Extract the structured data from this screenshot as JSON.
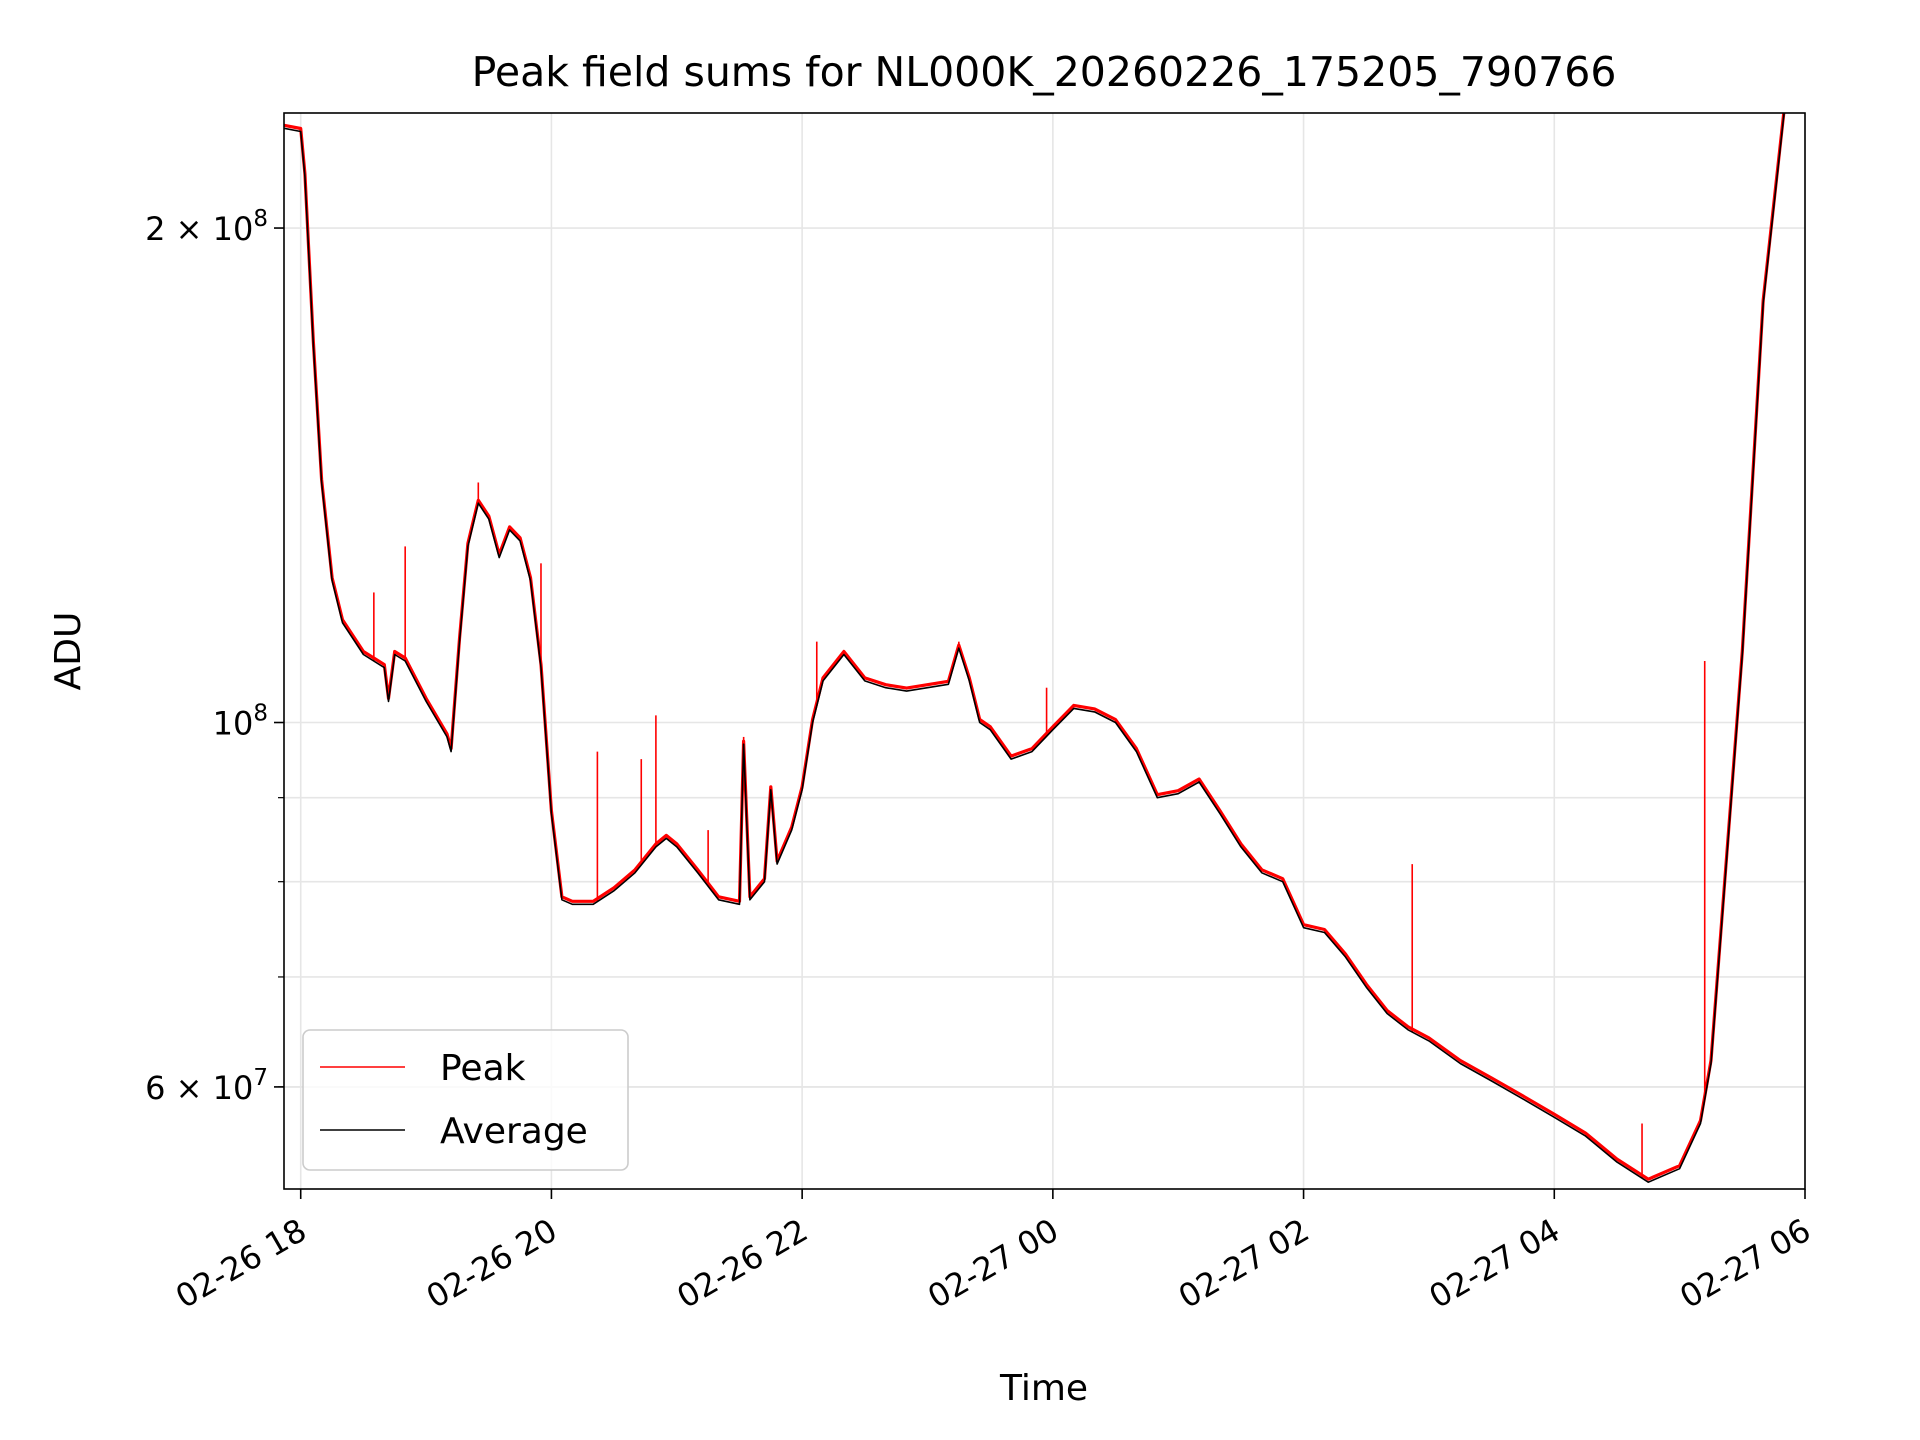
{
  "chart_data": {
    "type": "line",
    "title": "Peak field sums for NL000K_20260226_175205_790766",
    "xlabel": "Time",
    "ylabel": "ADU",
    "x_axis": {
      "type": "datetime",
      "range": [
        "2026-02-26 17:52",
        "2026-02-27 06:00"
      ],
      "tick_values": [
        "2026-02-26 18:00",
        "2026-02-26 20:00",
        "2026-02-26 22:00",
        "2026-02-27 00:00",
        "2026-02-27 02:00",
        "2026-02-27 04:00",
        "2026-02-27 06:00"
      ],
      "tick_labels": [
        "02-26 18",
        "02-26 20",
        "02-26 22",
        "02-27 00",
        "02-27 02",
        "02-27 04",
        "02-27 06"
      ],
      "tick_label_rotation": "30 degrees"
    },
    "y_axis": {
      "scale": "log",
      "range": [
        52000000,
        235000000
      ],
      "major_ticks": [
        {
          "value": 60000000,
          "label_mantissa": "6",
          "label_times": "×",
          "label_base": "10",
          "label_exp": "7"
        },
        {
          "value": 100000000,
          "label_mantissa": "",
          "label_times": "",
          "label_base": "10",
          "label_exp": "8"
        },
        {
          "value": 200000000,
          "label_mantissa": "2",
          "label_times": "×",
          "label_base": "10",
          "label_exp": "8"
        }
      ],
      "minor_ticks": [
        60000000,
        70000000,
        80000000,
        90000000
      ]
    },
    "grid": true,
    "legend": {
      "placement": "lower-left",
      "entries": [
        {
          "name": "Peak",
          "color": "#ff0000"
        },
        {
          "name": "Average",
          "color": "#000000"
        }
      ]
    },
    "colors": {
      "peak": "#ff0000",
      "average": "#000000",
      "grid": "#e6e6e6"
    },
    "series": [
      {
        "name": "Average",
        "points": [
          [
            "2026-02-26 17:52",
            230000000
          ],
          [
            "2026-02-26 18:00",
            229000000
          ],
          [
            "2026-02-26 18:02",
            215000000
          ],
          [
            "2026-02-26 18:06",
            170000000
          ],
          [
            "2026-02-26 18:10",
            140000000
          ],
          [
            "2026-02-26 18:15",
            122000000
          ],
          [
            "2026-02-26 18:20",
            115000000
          ],
          [
            "2026-02-26 18:30",
            110000000
          ],
          [
            "2026-02-26 18:40",
            108000000
          ],
          [
            "2026-02-26 18:42",
            103000000
          ],
          [
            "2026-02-26 18:45",
            110000000
          ],
          [
            "2026-02-26 18:50",
            109000000
          ],
          [
            "2026-02-26 19:00",
            103000000
          ],
          [
            "2026-02-26 19:10",
            98000000
          ],
          [
            "2026-02-26 19:12",
            96000000
          ],
          [
            "2026-02-26 19:16",
            112000000
          ],
          [
            "2026-02-26 19:20",
            128000000
          ],
          [
            "2026-02-26 19:25",
            136000000
          ],
          [
            "2026-02-26 19:30",
            133000000
          ],
          [
            "2026-02-26 19:35",
            126000000
          ],
          [
            "2026-02-26 19:40",
            131000000
          ],
          [
            "2026-02-26 19:45",
            129000000
          ],
          [
            "2026-02-26 19:50",
            122000000
          ],
          [
            "2026-02-26 19:55",
            108000000
          ],
          [
            "2026-02-26 20:00",
            88000000
          ],
          [
            "2026-02-26 20:05",
            78000000
          ],
          [
            "2026-02-26 20:10",
            77500000
          ],
          [
            "2026-02-26 20:20",
            77500000
          ],
          [
            "2026-02-26 20:30",
            79000000
          ],
          [
            "2026-02-26 20:40",
            81000000
          ],
          [
            "2026-02-26 20:50",
            84000000
          ],
          [
            "2026-02-26 20:55",
            85000000
          ],
          [
            "2026-02-26 21:00",
            84000000
          ],
          [
            "2026-02-26 21:10",
            81000000
          ],
          [
            "2026-02-26 21:20",
            78000000
          ],
          [
            "2026-02-26 21:30",
            77500000
          ],
          [
            "2026-02-26 21:32",
            97000000
          ],
          [
            "2026-02-26 21:35",
            78000000
          ],
          [
            "2026-02-26 21:42",
            80000000
          ],
          [
            "2026-02-26 21:45",
            91000000
          ],
          [
            "2026-02-26 21:48",
            82000000
          ],
          [
            "2026-02-26 21:55",
            86000000
          ],
          [
            "2026-02-26 22:00",
            91000000
          ],
          [
            "2026-02-26 22:05",
            100000000
          ],
          [
            "2026-02-26 22:10",
            106000000
          ],
          [
            "2026-02-26 22:20",
            110000000
          ],
          [
            "2026-02-26 22:30",
            106000000
          ],
          [
            "2026-02-26 22:40",
            105000000
          ],
          [
            "2026-02-26 22:50",
            104500000
          ],
          [
            "2026-02-26 23:00",
            105000000
          ],
          [
            "2026-02-26 23:10",
            105500000
          ],
          [
            "2026-02-26 23:15",
            111000000
          ],
          [
            "2026-02-26 23:20",
            106000000
          ],
          [
            "2026-02-26 23:25",
            100000000
          ],
          [
            "2026-02-26 23:30",
            99000000
          ],
          [
            "2026-02-26 23:40",
            95000000
          ],
          [
            "2026-02-26 23:50",
            96000000
          ],
          [
            "2026-02-27 00:00",
            99000000
          ],
          [
            "2026-02-27 00:10",
            102000000
          ],
          [
            "2026-02-27 00:20",
            101500000
          ],
          [
            "2026-02-27 00:30",
            100000000
          ],
          [
            "2026-02-27 00:40",
            96000000
          ],
          [
            "2026-02-27 00:50",
            90000000
          ],
          [
            "2026-02-27 01:00",
            90500000
          ],
          [
            "2026-02-27 01:10",
            92000000
          ],
          [
            "2026-02-27 01:20",
            88000000
          ],
          [
            "2026-02-27 01:30",
            84000000
          ],
          [
            "2026-02-27 01:40",
            81000000
          ],
          [
            "2026-02-27 01:50",
            80000000
          ],
          [
            "2026-02-27 02:00",
            75000000
          ],
          [
            "2026-02-27 02:10",
            74500000
          ],
          [
            "2026-02-27 02:20",
            72000000
          ],
          [
            "2026-02-27 02:30",
            69000000
          ],
          [
            "2026-02-27 02:40",
            66500000
          ],
          [
            "2026-02-27 02:50",
            65000000
          ],
          [
            "2026-02-27 03:00",
            64000000
          ],
          [
            "2026-02-27 03:15",
            62000000
          ],
          [
            "2026-02-27 03:30",
            60500000
          ],
          [
            "2026-02-27 03:45",
            59000000
          ],
          [
            "2026-02-27 04:00",
            57500000
          ],
          [
            "2026-02-27 04:15",
            56000000
          ],
          [
            "2026-02-27 04:30",
            54000000
          ],
          [
            "2026-02-27 04:45",
            52500000
          ],
          [
            "2026-02-27 05:00",
            53500000
          ],
          [
            "2026-02-27 05:10",
            57000000
          ],
          [
            "2026-02-27 05:15",
            62000000
          ],
          [
            "2026-02-27 05:20",
            75000000
          ],
          [
            "2026-02-27 05:30",
            110000000
          ],
          [
            "2026-02-27 05:40",
            180000000
          ],
          [
            "2026-02-27 05:50",
            235000000
          ]
        ]
      },
      {
        "name": "Peak",
        "spikes": [
          [
            "2026-02-26 18:35",
            120000000
          ],
          [
            "2026-02-26 18:50",
            128000000
          ],
          [
            "2026-02-26 19:25",
            140000000
          ],
          [
            "2026-02-26 19:55",
            125000000
          ],
          [
            "2026-02-26 20:22",
            96000000
          ],
          [
            "2026-02-26 20:43",
            95000000
          ],
          [
            "2026-02-26 20:50",
            101000000
          ],
          [
            "2026-02-26 21:15",
            86000000
          ],
          [
            "2026-02-26 21:32",
            98000000
          ],
          [
            "2026-02-26 22:07",
            112000000
          ],
          [
            "2026-02-26 23:15",
            112000000
          ],
          [
            "2026-02-26 23:57",
            105000000
          ],
          [
            "2026-02-27 02:52",
            82000000
          ],
          [
            "2026-02-27 04:42",
            57000000
          ],
          [
            "2026-02-27 05:12",
            109000000
          ]
        ]
      }
    ]
  }
}
